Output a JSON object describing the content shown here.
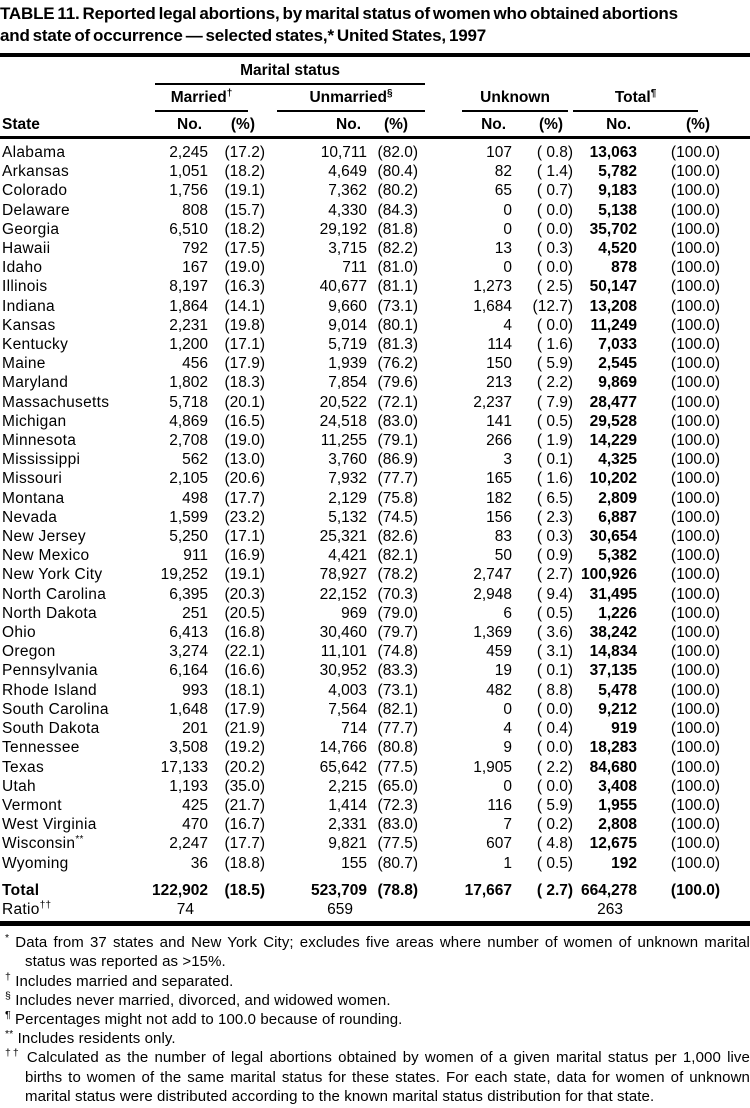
{
  "title": {
    "line1": "TABLE 11. Reported legal abortions, by marital status of women who obtained abortions",
    "line2": "and state of occurrence — selected states,* United States, 1997"
  },
  "table": {
    "group_header": "Marital status",
    "columns": {
      "state": "State",
      "married": "Married",
      "married_sup": "†",
      "unmarried": "Unmarried",
      "unmarried_sup": "§",
      "unknown": "Unknown",
      "total": "Total",
      "total_sup": "¶",
      "no": "No.",
      "pct": "(%)"
    },
    "rows": [
      {
        "state": "Alabama",
        "sup": "",
        "m_no": "2,245",
        "m_pct": "(17.2)",
        "u_no": "10,711",
        "u_pct": "(82.0)",
        "k_no": "107",
        "k_pct": "( 0.8)",
        "t_no": "13,063",
        "t_pct": "(100.0)"
      },
      {
        "state": "Arkansas",
        "sup": "",
        "m_no": "1,051",
        "m_pct": "(18.2)",
        "u_no": "4,649",
        "u_pct": "(80.4)",
        "k_no": "82",
        "k_pct": "( 1.4)",
        "t_no": "5,782",
        "t_pct": "(100.0)"
      },
      {
        "state": "Colorado",
        "sup": "",
        "m_no": "1,756",
        "m_pct": "(19.1)",
        "u_no": "7,362",
        "u_pct": "(80.2)",
        "k_no": "65",
        "k_pct": "( 0.7)",
        "t_no": "9,183",
        "t_pct": "(100.0)"
      },
      {
        "state": "Delaware",
        "sup": "",
        "m_no": "808",
        "m_pct": "(15.7)",
        "u_no": "4,330",
        "u_pct": "(84.3)",
        "k_no": "0",
        "k_pct": "( 0.0)",
        "t_no": "5,138",
        "t_pct": "(100.0)"
      },
      {
        "state": "Georgia",
        "sup": "",
        "m_no": "6,510",
        "m_pct": "(18.2)",
        "u_no": "29,192",
        "u_pct": "(81.8)",
        "k_no": "0",
        "k_pct": "( 0.0)",
        "t_no": "35,702",
        "t_pct": "(100.0)"
      },
      {
        "state": "Hawaii",
        "sup": "",
        "m_no": "792",
        "m_pct": "(17.5)",
        "u_no": "3,715",
        "u_pct": "(82.2)",
        "k_no": "13",
        "k_pct": "( 0.3)",
        "t_no": "4,520",
        "t_pct": "(100.0)"
      },
      {
        "state": "Idaho",
        "sup": "",
        "m_no": "167",
        "m_pct": "(19.0)",
        "u_no": "711",
        "u_pct": "(81.0)",
        "k_no": "0",
        "k_pct": "( 0.0)",
        "t_no": "878",
        "t_pct": "(100.0)"
      },
      {
        "state": "Illinois",
        "sup": "",
        "m_no": "8,197",
        "m_pct": "(16.3)",
        "u_no": "40,677",
        "u_pct": "(81.1)",
        "k_no": "1,273",
        "k_pct": "( 2.5)",
        "t_no": "50,147",
        "t_pct": "(100.0)"
      },
      {
        "state": "Indiana",
        "sup": "",
        "m_no": "1,864",
        "m_pct": "(14.1)",
        "u_no": "9,660",
        "u_pct": "(73.1)",
        "k_no": "1,684",
        "k_pct": "(12.7)",
        "t_no": "13,208",
        "t_pct": "(100.0)"
      },
      {
        "state": "Kansas",
        "sup": "",
        "m_no": "2,231",
        "m_pct": "(19.8)",
        "u_no": "9,014",
        "u_pct": "(80.1)",
        "k_no": "4",
        "k_pct": "( 0.0)",
        "t_no": "11,249",
        "t_pct": "(100.0)"
      },
      {
        "state": "Kentucky",
        "sup": "",
        "m_no": "1,200",
        "m_pct": "(17.1)",
        "u_no": "5,719",
        "u_pct": "(81.3)",
        "k_no": "114",
        "k_pct": "( 1.6)",
        "t_no": "7,033",
        "t_pct": "(100.0)"
      },
      {
        "state": "Maine",
        "sup": "",
        "m_no": "456",
        "m_pct": "(17.9)",
        "u_no": "1,939",
        "u_pct": "(76.2)",
        "k_no": "150",
        "k_pct": "( 5.9)",
        "t_no": "2,545",
        "t_pct": "(100.0)"
      },
      {
        "state": "Maryland",
        "sup": "",
        "m_no": "1,802",
        "m_pct": "(18.3)",
        "u_no": "7,854",
        "u_pct": "(79.6)",
        "k_no": "213",
        "k_pct": "( 2.2)",
        "t_no": "9,869",
        "t_pct": "(100.0)"
      },
      {
        "state": "Massachusetts",
        "sup": "",
        "m_no": "5,718",
        "m_pct": "(20.1)",
        "u_no": "20,522",
        "u_pct": "(72.1)",
        "k_no": "2,237",
        "k_pct": "( 7.9)",
        "t_no": "28,477",
        "t_pct": "(100.0)"
      },
      {
        "state": "Michigan",
        "sup": "",
        "m_no": "4,869",
        "m_pct": "(16.5)",
        "u_no": "24,518",
        "u_pct": "(83.0)",
        "k_no": "141",
        "k_pct": "( 0.5)",
        "t_no": "29,528",
        "t_pct": "(100.0)"
      },
      {
        "state": "Minnesota",
        "sup": "",
        "m_no": "2,708",
        "m_pct": "(19.0)",
        "u_no": "11,255",
        "u_pct": "(79.1)",
        "k_no": "266",
        "k_pct": "( 1.9)",
        "t_no": "14,229",
        "t_pct": "(100.0)"
      },
      {
        "state": "Mississippi",
        "sup": "",
        "m_no": "562",
        "m_pct": "(13.0)",
        "u_no": "3,760",
        "u_pct": "(86.9)",
        "k_no": "3",
        "k_pct": "( 0.1)",
        "t_no": "4,325",
        "t_pct": "(100.0)"
      },
      {
        "state": "Missouri",
        "sup": "",
        "m_no": "2,105",
        "m_pct": "(20.6)",
        "u_no": "7,932",
        "u_pct": "(77.7)",
        "k_no": "165",
        "k_pct": "( 1.6)",
        "t_no": "10,202",
        "t_pct": "(100.0)"
      },
      {
        "state": "Montana",
        "sup": "",
        "m_no": "498",
        "m_pct": "(17.7)",
        "u_no": "2,129",
        "u_pct": "(75.8)",
        "k_no": "182",
        "k_pct": "( 6.5)",
        "t_no": "2,809",
        "t_pct": "(100.0)"
      },
      {
        "state": "Nevada",
        "sup": "",
        "m_no": "1,599",
        "m_pct": "(23.2)",
        "u_no": "5,132",
        "u_pct": "(74.5)",
        "k_no": "156",
        "k_pct": "( 2.3)",
        "t_no": "6,887",
        "t_pct": "(100.0)"
      },
      {
        "state": "New Jersey",
        "sup": "",
        "m_no": "5,250",
        "m_pct": "(17.1)",
        "u_no": "25,321",
        "u_pct": "(82.6)",
        "k_no": "83",
        "k_pct": "( 0.3)",
        "t_no": "30,654",
        "t_pct": "(100.0)"
      },
      {
        "state": "New Mexico",
        "sup": "",
        "m_no": "911",
        "m_pct": "(16.9)",
        "u_no": "4,421",
        "u_pct": "(82.1)",
        "k_no": "50",
        "k_pct": "( 0.9)",
        "t_no": "5,382",
        "t_pct": "(100.0)"
      },
      {
        "state": "New York City",
        "sup": "",
        "m_no": "19,252",
        "m_pct": "(19.1)",
        "u_no": "78,927",
        "u_pct": "(78.2)",
        "k_no": "2,747",
        "k_pct": "( 2.7)",
        "t_no": "100,926",
        "t_pct": "(100.0)"
      },
      {
        "state": "North Carolina",
        "sup": "",
        "m_no": "6,395",
        "m_pct": "(20.3)",
        "u_no": "22,152",
        "u_pct": "(70.3)",
        "k_no": "2,948",
        "k_pct": "( 9.4)",
        "t_no": "31,495",
        "t_pct": "(100.0)"
      },
      {
        "state": "North Dakota",
        "sup": "",
        "m_no": "251",
        "m_pct": "(20.5)",
        "u_no": "969",
        "u_pct": "(79.0)",
        "k_no": "6",
        "k_pct": "( 0.5)",
        "t_no": "1,226",
        "t_pct": "(100.0)"
      },
      {
        "state": "Ohio",
        "sup": "",
        "m_no": "6,413",
        "m_pct": "(16.8)",
        "u_no": "30,460",
        "u_pct": "(79.7)",
        "k_no": "1,369",
        "k_pct": "( 3.6)",
        "t_no": "38,242",
        "t_pct": "(100.0)"
      },
      {
        "state": "Oregon",
        "sup": "",
        "m_no": "3,274",
        "m_pct": "(22.1)",
        "u_no": "11,101",
        "u_pct": "(74.8)",
        "k_no": "459",
        "k_pct": "( 3.1)",
        "t_no": "14,834",
        "t_pct": "(100.0)"
      },
      {
        "state": "Pennsylvania",
        "sup": "",
        "m_no": "6,164",
        "m_pct": "(16.6)",
        "u_no": "30,952",
        "u_pct": "(83.3)",
        "k_no": "19",
        "k_pct": "( 0.1)",
        "t_no": "37,135",
        "t_pct": "(100.0)"
      },
      {
        "state": "Rhode Island",
        "sup": "",
        "m_no": "993",
        "m_pct": "(18.1)",
        "u_no": "4,003",
        "u_pct": "(73.1)",
        "k_no": "482",
        "k_pct": "( 8.8)",
        "t_no": "5,478",
        "t_pct": "(100.0)"
      },
      {
        "state": "South Carolina",
        "sup": "",
        "m_no": "1,648",
        "m_pct": "(17.9)",
        "u_no": "7,564",
        "u_pct": "(82.1)",
        "k_no": "0",
        "k_pct": "( 0.0)",
        "t_no": "9,212",
        "t_pct": "(100.0)"
      },
      {
        "state": "South Dakota",
        "sup": "",
        "m_no": "201",
        "m_pct": "(21.9)",
        "u_no": "714",
        "u_pct": "(77.7)",
        "k_no": "4",
        "k_pct": "( 0.4)",
        "t_no": "919",
        "t_pct": "(100.0)"
      },
      {
        "state": "Tennessee",
        "sup": "",
        "m_no": "3,508",
        "m_pct": "(19.2)",
        "u_no": "14,766",
        "u_pct": "(80.8)",
        "k_no": "9",
        "k_pct": "( 0.0)",
        "t_no": "18,283",
        "t_pct": "(100.0)"
      },
      {
        "state": "Texas",
        "sup": "",
        "m_no": "17,133",
        "m_pct": "(20.2)",
        "u_no": "65,642",
        "u_pct": "(77.5)",
        "k_no": "1,905",
        "k_pct": "( 2.2)",
        "t_no": "84,680",
        "t_pct": "(100.0)"
      },
      {
        "state": "Utah",
        "sup": "",
        "m_no": "1,193",
        "m_pct": "(35.0)",
        "u_no": "2,215",
        "u_pct": "(65.0)",
        "k_no": "0",
        "k_pct": "( 0.0)",
        "t_no": "3,408",
        "t_pct": "(100.0)"
      },
      {
        "state": "Vermont",
        "sup": "",
        "m_no": "425",
        "m_pct": "(21.7)",
        "u_no": "1,414",
        "u_pct": "(72.3)",
        "k_no": "116",
        "k_pct": "( 5.9)",
        "t_no": "1,955",
        "t_pct": "(100.0)"
      },
      {
        "state": "West Virginia",
        "sup": "",
        "m_no": "470",
        "m_pct": "(16.7)",
        "u_no": "2,331",
        "u_pct": "(83.0)",
        "k_no": "7",
        "k_pct": "( 0.2)",
        "t_no": "2,808",
        "t_pct": "(100.0)"
      },
      {
        "state": "Wisconsin",
        "sup": "**",
        "m_no": "2,247",
        "m_pct": "(17.7)",
        "u_no": "9,821",
        "u_pct": "(77.5)",
        "k_no": "607",
        "k_pct": "( 4.8)",
        "t_no": "12,675",
        "t_pct": "(100.0)"
      },
      {
        "state": "Wyoming",
        "sup": "",
        "m_no": "36",
        "m_pct": "(18.8)",
        "u_no": "155",
        "u_pct": "(80.7)",
        "k_no": "1",
        "k_pct": "( 0.5)",
        "t_no": "192",
        "t_pct": "(100.0)"
      }
    ],
    "total_row": {
      "label": "Total",
      "m_no": "122,902",
      "m_pct": "(18.5)",
      "u_no": "523,709",
      "u_pct": "(78.8)",
      "k_no": "17,667",
      "k_pct": "( 2.7)",
      "t_no": "664,278",
      "t_pct": "(100.0)"
    },
    "ratio_row": {
      "label": "Ratio",
      "sup": "††",
      "m": "74",
      "u": "659",
      "t": "263"
    }
  },
  "footnotes": [
    {
      "marker": "*",
      "text": "Data from 37 states and New York City; excludes five areas where number of women of unknown marital status was reported as >15%."
    },
    {
      "marker": "†",
      "text": "Includes married and separated."
    },
    {
      "marker": "§",
      "text": "Includes never married, divorced, and widowed women."
    },
    {
      "marker": "¶",
      "text": "Percentages might not add to 100.0 because of rounding."
    },
    {
      "marker": "**",
      "text": "Includes residents only."
    },
    {
      "marker": "††",
      "text": "Calculated as the number of legal abortions obtained by women of a given marital status per 1,000 live births to women of the same marital status for these states. For each state, data for women of unknown marital status were distributed according to the known marital status distribution for that state."
    }
  ]
}
